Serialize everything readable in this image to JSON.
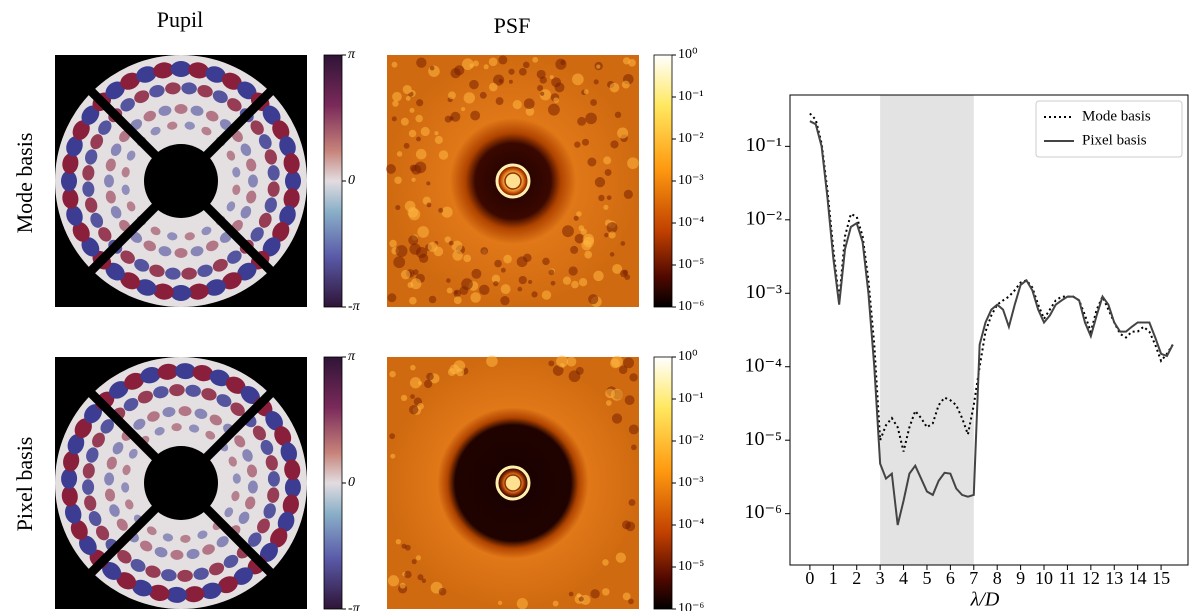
{
  "figure": {
    "column_titles": [
      "Pupil",
      "PSF"
    ],
    "row_titles": [
      "Mode basis",
      "Pixel basis"
    ]
  },
  "colorbars": {
    "pupil": {
      "lim": [
        -3.1416,
        3.1416
      ],
      "ticks": [
        {
          "value": 3.1416,
          "label": "π"
        },
        0,
        {
          "value": -3.1416,
          "label": "-π"
        }
      ]
    },
    "psf": {
      "lim": [
        1e-06,
        1
      ],
      "log": true,
      "ticks": [
        {
          "value": 1,
          "label": "10⁰"
        },
        {
          "value": 0.1,
          "label": "10⁻¹"
        },
        {
          "value": 0.01,
          "label": "10⁻²"
        },
        {
          "value": 0.001,
          "label": "10⁻³"
        },
        {
          "value": 0.0001,
          "label": "10⁻⁴"
        },
        {
          "value": 1e-05,
          "label": "10⁻⁵"
        },
        {
          "value": 1e-06,
          "label": "10⁻⁶"
        }
      ]
    }
  },
  "chart_data": {
    "type": "line",
    "xlabel": "λ/D",
    "log_y": true,
    "legend": "upper right",
    "xlim": [
      -0.85,
      16.15
    ],
    "ylim": [
      2e-07,
      0.5
    ],
    "xticks": [
      0,
      1,
      2,
      3,
      4,
      5,
      6,
      7,
      8,
      9,
      10,
      11,
      12,
      13,
      14,
      15
    ],
    "yticks": [
      {
        "value": 0.1,
        "label": "10⁻¹"
      },
      {
        "value": 0.01,
        "label": "10⁻²"
      },
      {
        "value": 0.001,
        "label": "10⁻³"
      },
      {
        "value": 0.0001,
        "label": "10⁻⁴"
      },
      {
        "value": 1e-05,
        "label": "10⁻⁵"
      },
      {
        "value": 1e-06,
        "label": "10⁻⁶"
      }
    ],
    "shaded_span": [
      3,
      7
    ],
    "x": [
      0,
      0.25,
      0.5,
      0.75,
      1,
      1.25,
      1.5,
      1.75,
      2,
      2.25,
      2.5,
      2.75,
      3,
      3.25,
      3.5,
      3.75,
      4,
      4.25,
      4.5,
      4.75,
      5,
      5.25,
      5.5,
      5.75,
      6,
      6.25,
      6.5,
      6.75,
      7,
      7.25,
      7.5,
      7.75,
      8,
      8.25,
      8.5,
      8.75,
      9,
      9.25,
      9.5,
      9.75,
      10,
      10.25,
      10.5,
      10.75,
      11,
      11.25,
      11.5,
      11.75,
      12,
      12.25,
      12.5,
      12.75,
      13,
      13.25,
      13.5,
      13.75,
      14,
      14.25,
      14.5,
      14.75,
      15,
      15.25,
      15.5
    ],
    "series": [
      {
        "name": "Mode basis",
        "color": "#000000",
        "linestyle": "dotted",
        "values": [
          0.28,
          0.23,
          0.11,
          0.025,
          0.004,
          0.0008,
          0.006,
          0.012,
          0.011,
          0.006,
          0.0015,
          0.0002,
          1e-05,
          1.6e-05,
          2e-05,
          1.5e-05,
          7e-06,
          1.5e-05,
          2.5e-05,
          2e-05,
          1.5e-05,
          1.7e-05,
          3e-05,
          3.8e-05,
          3.5e-05,
          3e-05,
          2e-05,
          1.2e-05,
          3e-05,
          0.0001,
          0.0003,
          0.0005,
          0.0007,
          0.0008,
          0.0009,
          0.0011,
          0.0014,
          0.0015,
          0.0012,
          0.0007,
          0.00045,
          0.0006,
          0.0008,
          0.0009,
          0.0009,
          0.0009,
          0.0008,
          0.0005,
          0.0003,
          0.0006,
          0.0009,
          0.0006,
          0.0004,
          0.00028,
          0.00025,
          0.0003,
          0.0003,
          0.00035,
          0.0003,
          0.0002,
          0.00012,
          0.00015,
          0.0002
        ]
      },
      {
        "name": "Pixel basis",
        "color": "#444444",
        "linestyle": "solid",
        "values": [
          0.22,
          0.2,
          0.1,
          0.02,
          0.003,
          0.0007,
          0.004,
          0.008,
          0.009,
          0.005,
          0.001,
          0.0001,
          4.8e-06,
          3e-06,
          3.5e-06,
          7e-07,
          1.5e-06,
          3.5e-06,
          4.5e-06,
          3e-06,
          2e-06,
          1.8e-06,
          2.8e-06,
          3.6e-06,
          3.5e-06,
          2.2e-06,
          1.8e-06,
          1.7e-06,
          1.8e-06,
          0.0002,
          0.0004,
          0.0006,
          0.0007,
          0.0006,
          0.00035,
          0.0007,
          0.0013,
          0.0015,
          0.0011,
          0.0006,
          0.0004,
          0.0005,
          0.0007,
          0.0008,
          0.0009,
          0.0009,
          0.0008,
          0.0004,
          0.00026,
          0.0005,
          0.0009,
          0.0007,
          0.0004,
          0.0003,
          0.0003,
          0.00035,
          0.0004,
          0.0004,
          0.0004,
          0.00025,
          0.00015,
          0.00014,
          0.0002
        ]
      }
    ]
  }
}
